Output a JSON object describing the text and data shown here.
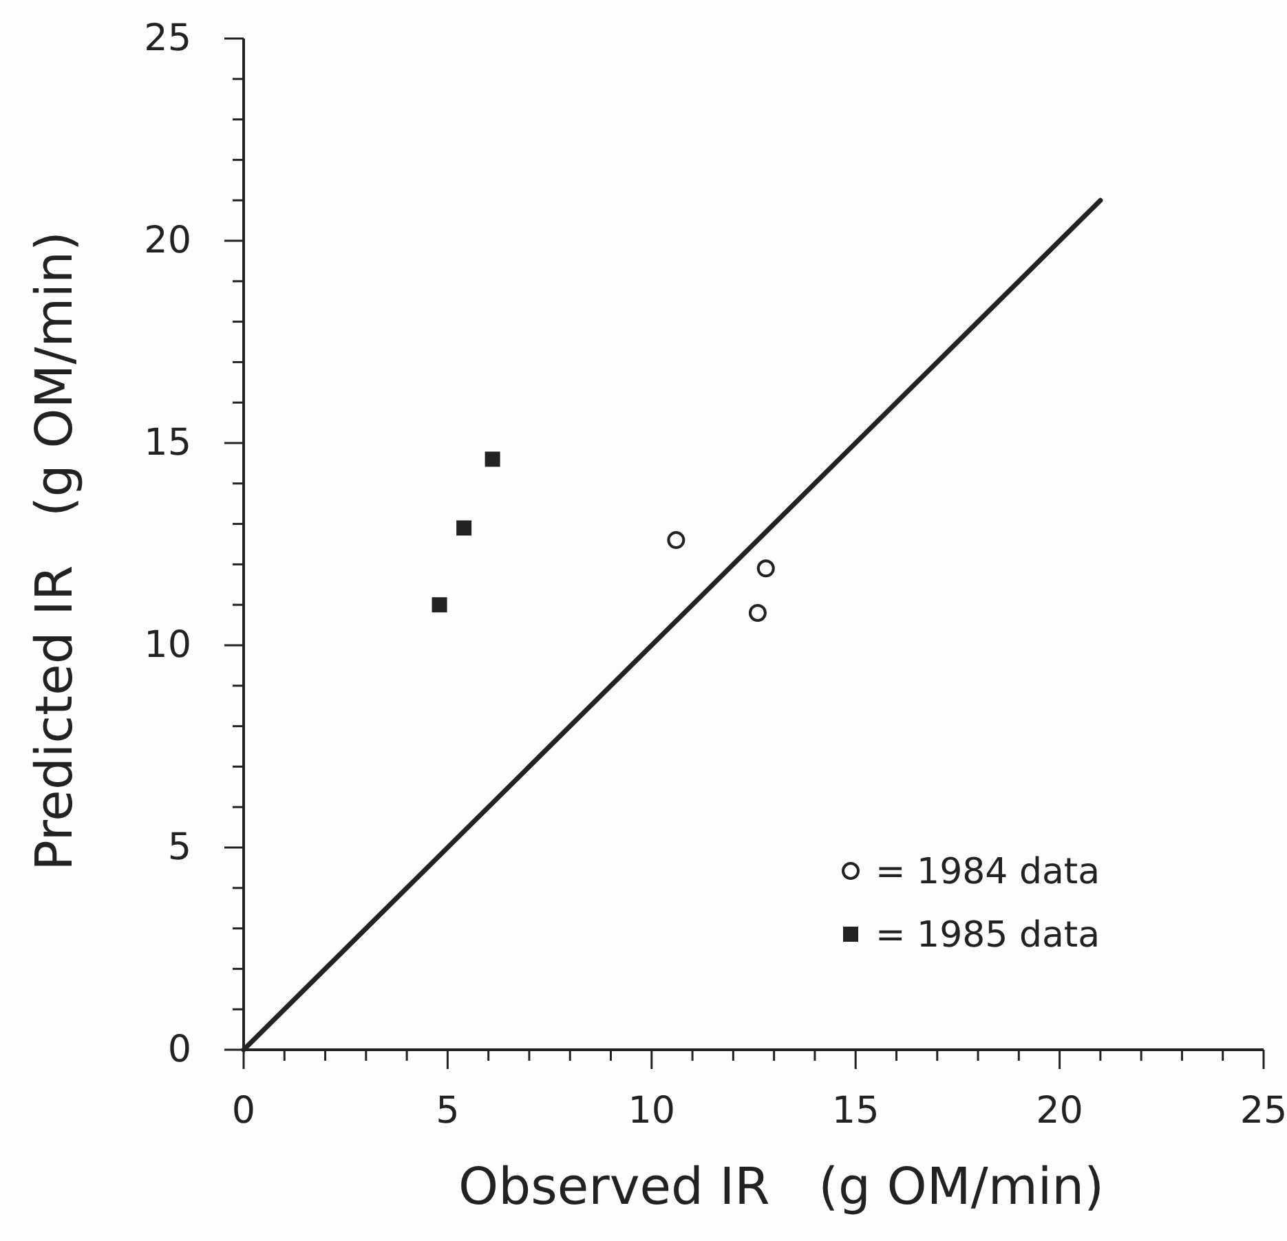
{
  "chart_data": {
    "type": "scatter",
    "xlabel": "Observed IR   (g OM/min)",
    "ylabel": "Predicted IR   (g OM/min)",
    "xlim": [
      0,
      25
    ],
    "ylim": [
      0,
      25
    ],
    "xticks": [
      0,
      {
        "value": 1,
        "label": null
      },
      {
        "value": 2,
        "label": null
      },
      {
        "value": 3,
        "label": null
      },
      {
        "value": 4,
        "label": null
      },
      5,
      {
        "value": 6,
        "label": null
      },
      {
        "value": 7,
        "label": null
      },
      {
        "value": 8,
        "label": null
      },
      {
        "value": 9,
        "label": null
      },
      10,
      {
        "value": 11,
        "label": null
      },
      {
        "value": 12,
        "label": null
      },
      {
        "value": 13,
        "label": null
      },
      {
        "value": 14,
        "label": null
      },
      15,
      {
        "value": 16,
        "label": null
      },
      {
        "value": 17,
        "label": null
      },
      {
        "value": 18,
        "label": null
      },
      {
        "value": 19,
        "label": null
      },
      20,
      {
        "value": 21,
        "label": null
      },
      {
        "value": 22,
        "label": null
      },
      {
        "value": 23,
        "label": null
      },
      {
        "value": 24,
        "label": null
      },
      25
    ],
    "yticks": [
      0,
      {
        "value": 1,
        "label": null
      },
      {
        "value": 2,
        "label": null
      },
      {
        "value": 3,
        "label": null
      },
      {
        "value": 4,
        "label": null
      },
      5,
      {
        "value": 6,
        "label": null
      },
      {
        "value": 7,
        "label": null
      },
      {
        "value": 8,
        "label": null
      },
      {
        "value": 9,
        "label": null
      },
      10,
      {
        "value": 11,
        "label": null
      },
      {
        "value": 12,
        "label": null
      },
      {
        "value": 13,
        "label": null
      },
      {
        "value": 14,
        "label": null
      },
      15,
      {
        "value": 16,
        "label": null
      },
      {
        "value": 17,
        "label": null
      },
      {
        "value": 18,
        "label": null
      },
      {
        "value": 19,
        "label": null
      },
      20,
      {
        "value": 21,
        "label": null
      },
      {
        "value": 22,
        "label": null
      },
      {
        "value": 23,
        "label": null
      },
      {
        "value": 24,
        "label": null
      },
      25
    ],
    "grid": false,
    "legend": "bottom right",
    "series": [
      {
        "name": "= 1984 data",
        "marker": "circle",
        "color": "#222222",
        "x": [
          10.6,
          12.8,
          12.6
        ],
        "values": [
          12.6,
          11.9,
          10.8
        ]
      },
      {
        "name": "= 1985 data",
        "marker": "square",
        "color": "#222222",
        "x": [
          4.8,
          5.4,
          6.1
        ],
        "values": [
          11.0,
          12.9,
          14.6
        ]
      },
      {
        "type": "line",
        "marker": "none",
        "line_style": "solid",
        "color": "#222222",
        "x": [
          0,
          21
        ],
        "values": [
          0,
          21
        ]
      }
    ]
  }
}
